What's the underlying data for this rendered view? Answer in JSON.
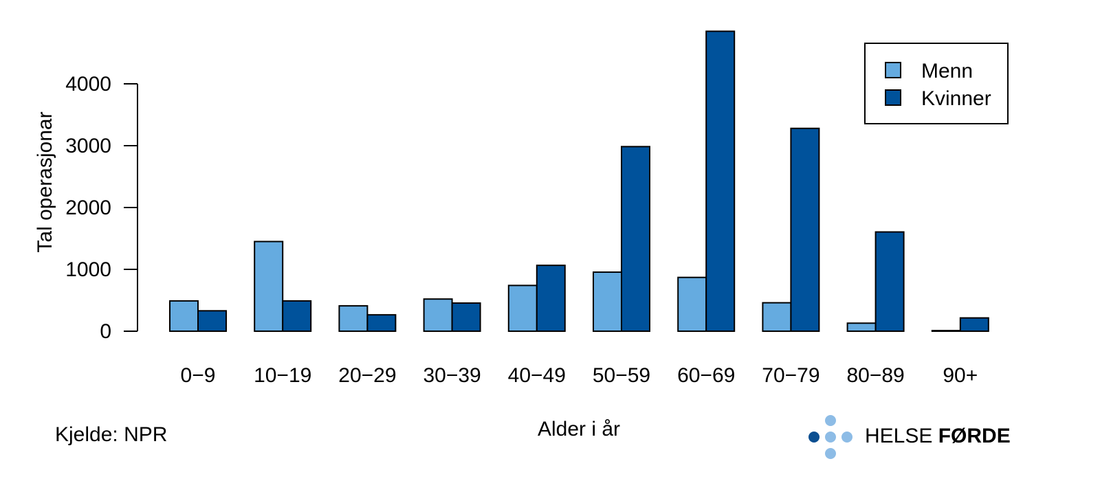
{
  "chart_data": {
    "type": "bar",
    "categories": [
      "0−9",
      "10−19",
      "20−29",
      "30−39",
      "40−49",
      "50−59",
      "60−69",
      "70−79",
      "80−89",
      "90+"
    ],
    "series": [
      {
        "name": "Menn",
        "color": "#65ABE0",
        "values": [
          490,
          1450,
          410,
          520,
          740,
          955,
          870,
          460,
          130,
          10
        ]
      },
      {
        "name": "Kvinner",
        "color": "#00529B",
        "values": [
          330,
          490,
          265,
          455,
          1065,
          2985,
          4850,
          3280,
          1605,
          215
        ]
      }
    ],
    "xlabel": "Alder i år",
    "ylabel": "Tal operasjonar",
    "ylim": [
      0,
      5000
    ],
    "yticks": [
      0,
      1000,
      2000,
      3000,
      4000
    ],
    "grid": false,
    "legend_position": "top-right"
  },
  "source": "Kjelde: NPR",
  "logo": {
    "text_light": "HELSE ",
    "text_bold": "FØRDE",
    "color": "#1F5C99"
  }
}
